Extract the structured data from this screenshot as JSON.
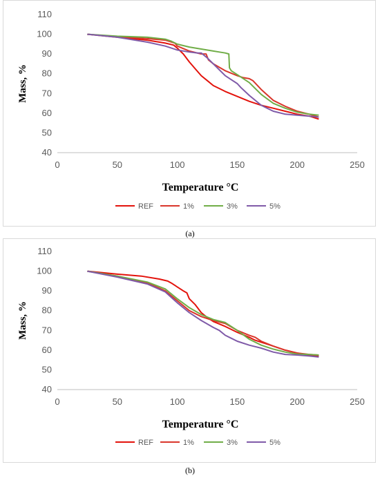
{
  "chart_data": [
    {
      "type": "line",
      "panel": "(a)",
      "xlabel": "Temperature °C",
      "ylabel": "Mass, %",
      "xlim": [
        0,
        250
      ],
      "ylim": [
        40,
        110
      ],
      "xticks": [
        "0",
        "50",
        "100",
        "150",
        "200",
        "250"
      ],
      "yticks": [
        "40",
        "50",
        "60",
        "70",
        "80",
        "90",
        "100",
        "110"
      ],
      "grid": "none",
      "legend_position": "bottom",
      "series": [
        {
          "name": "REF",
          "color": "#e3120b",
          "x": [
            25,
            50,
            75,
            90,
            97,
            100,
            105,
            110,
            115,
            120,
            125,
            130,
            135,
            140,
            150,
            160,
            170,
            180,
            190,
            200,
            210,
            218
          ],
          "y": [
            100,
            98.5,
            97,
            95.5,
            94.5,
            93,
            90,
            86,
            82.5,
            79,
            76.5,
            74,
            72.5,
            71,
            68.5,
            66,
            64,
            62.5,
            61,
            59.5,
            58.5,
            57
          ]
        },
        {
          "name": "1%",
          "color": "#d9352a",
          "x": [
            25,
            50,
            75,
            90,
            98,
            100,
            110,
            120,
            124,
            126,
            130,
            140,
            150,
            155,
            160,
            163,
            170,
            180,
            190,
            200,
            210,
            218
          ],
          "y": [
            100,
            98.7,
            97.8,
            97,
            95.5,
            94,
            91.5,
            90,
            90,
            87,
            85,
            81.5,
            79,
            78,
            77.5,
            76.5,
            72,
            66.5,
            63.5,
            61,
            59.5,
            58
          ]
        },
        {
          "name": "3%",
          "color": "#70ad47",
          "x": [
            25,
            50,
            75,
            90,
            95,
            100,
            110,
            120,
            130,
            135,
            140,
            143,
            143.5,
            145,
            150,
            160,
            170,
            180,
            190,
            200,
            210,
            218
          ],
          "y": [
            100,
            99,
            98.5,
            97.5,
            96.5,
            95,
            93.5,
            92.5,
            91.5,
            91,
            90.5,
            90,
            83,
            81.5,
            79.5,
            75.5,
            69.5,
            65,
            62.5,
            60.5,
            59.5,
            59
          ]
        },
        {
          "name": "5%",
          "color": "#7f5aa8",
          "x": [
            25,
            50,
            75,
            90,
            100,
            110,
            117,
            120,
            125,
            130,
            135,
            140,
            145,
            150,
            153,
            160,
            170,
            180,
            190,
            200,
            210,
            218
          ],
          "y": [
            100,
            98.5,
            96,
            94,
            92,
            91,
            90.5,
            90.5,
            88,
            85,
            82,
            79,
            77,
            75,
            73,
            69,
            64,
            61,
            59.5,
            59,
            58.5,
            58
          ]
        }
      ]
    },
    {
      "type": "line",
      "panel": "(b)",
      "xlabel": "Temperature °C",
      "ylabel": "Mass, %",
      "xlim": [
        0,
        250
      ],
      "ylim": [
        40,
        110
      ],
      "xticks": [
        "0",
        "50",
        "100",
        "150",
        "200",
        "250"
      ],
      "yticks": [
        "40",
        "50",
        "60",
        "70",
        "80",
        "90",
        "100",
        "110"
      ],
      "grid": "none",
      "legend_position": "bottom",
      "series": [
        {
          "name": "REF",
          "color": "#e3120b",
          "x": [
            25,
            50,
            70,
            85,
            92,
            95,
            100,
            105,
            108,
            110,
            115,
            120,
            125,
            130,
            140,
            150,
            160,
            165,
            170,
            180,
            190,
            200,
            210,
            218
          ],
          "y": [
            100,
            98.5,
            97.5,
            96,
            95,
            94,
            92,
            90,
            89,
            86,
            83,
            79,
            76.5,
            74.5,
            72,
            69,
            66.5,
            65,
            64,
            62,
            60,
            58.5,
            57.5,
            57
          ]
        },
        {
          "name": "1%",
          "color": "#d9352a",
          "x": [
            25,
            50,
            75,
            90,
            100,
            110,
            120,
            130,
            140,
            150,
            160,
            165,
            170,
            180,
            190,
            200,
            210,
            218
          ],
          "y": [
            100,
            97.5,
            94,
            90,
            85,
            80,
            77,
            75,
            73.5,
            70,
            67.5,
            66.5,
            64.5,
            62,
            60,
            58.5,
            57.8,
            57.5
          ]
        },
        {
          "name": "3%",
          "color": "#70ad47",
          "x": [
            25,
            50,
            75,
            90,
            100,
            110,
            120,
            130,
            140,
            150,
            160,
            170,
            180,
            190,
            200,
            210,
            218
          ],
          "y": [
            100,
            97.5,
            94.5,
            91,
            86,
            81.5,
            78,
            75.5,
            74,
            70,
            65.5,
            62.5,
            60.5,
            59,
            58,
            57.8,
            57.5
          ]
        },
        {
          "name": "5%",
          "color": "#7f5aa8",
          "x": [
            25,
            50,
            75,
            90,
            100,
            110,
            120,
            130,
            135,
            140,
            145,
            150,
            160,
            170,
            180,
            190,
            200,
            210,
            218
          ],
          "y": [
            100,
            97,
            93.5,
            89.5,
            84,
            79,
            75,
            71.5,
            70,
            67.5,
            66,
            64.5,
            62.5,
            61,
            59,
            57.8,
            57.5,
            57,
            56.5
          ]
        }
      ]
    }
  ],
  "captions": {
    "a": "(a)",
    "b": "(b)"
  }
}
